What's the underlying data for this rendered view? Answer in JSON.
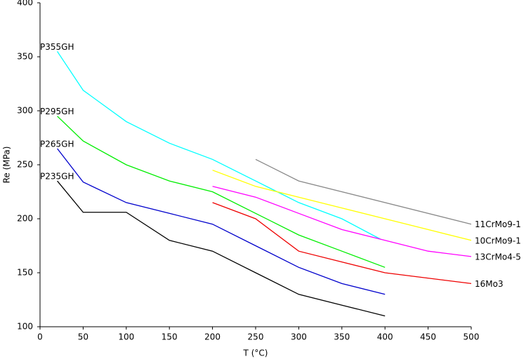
{
  "chart_data": {
    "type": "line",
    "x_label": "T (°C)",
    "y_label": "Re (MPa)",
    "xlim": [
      0,
      500
    ],
    "xticks": [
      0,
      50,
      100,
      150,
      200,
      250,
      300,
      350,
      400,
      450,
      500
    ],
    "ylim": [
      100,
      400
    ],
    "yticks": [
      100,
      150,
      200,
      250,
      300,
      350,
      400
    ],
    "grid": false,
    "series": [
      {
        "name": "P355GH",
        "color": "#00ffff",
        "x": [
          20,
          50,
          100,
          150,
          200,
          250,
          300,
          350,
          395
        ],
        "values": [
          355,
          319,
          290,
          270,
          255,
          235,
          215,
          200,
          181
        ]
      },
      {
        "name": "P295GH",
        "color": "#00ee00",
        "x": [
          20,
          50,
          100,
          150,
          200,
          250,
          300,
          350,
          400
        ],
        "values": [
          295,
          272,
          250,
          235,
          225,
          205,
          185,
          170,
          155
        ]
      },
      {
        "name": "P265GH",
        "color": "#0000cc",
        "x": [
          20,
          50,
          100,
          150,
          200,
          250,
          300,
          350,
          400
        ],
        "values": [
          265,
          234,
          215,
          205,
          195,
          175,
          155,
          140,
          130
        ]
      },
      {
        "name": "P235GH",
        "color": "#000000",
        "x": [
          20,
          50,
          100,
          150,
          200,
          250,
          300,
          350,
          400
        ],
        "values": [
          235,
          206,
          206,
          180,
          170,
          150,
          130,
          120,
          110
        ]
      },
      {
        "name": "16Mo3",
        "color": "#ee0000",
        "x": [
          200,
          250,
          300,
          350,
          400,
          500
        ],
        "values": [
          215,
          200,
          170,
          160,
          150,
          140
        ]
      },
      {
        "name": "13CrMo4-5",
        "color": "#ff00ff",
        "x": [
          200,
          250,
          300,
          350,
          400,
          450,
          500
        ],
        "values": [
          230,
          220,
          205,
          190,
          180,
          170,
          165
        ]
      },
      {
        "name": "10CrMo9-1",
        "color": "#ffff00",
        "x": [
          200,
          250,
          300,
          350,
          400,
          450,
          500
        ],
        "values": [
          245,
          230,
          220,
          210,
          200,
          190,
          180
        ]
      },
      {
        "name": "11CrMo9-1",
        "color": "#888888",
        "x": [
          250,
          300,
          500
        ],
        "values": [
          255,
          235,
          195
        ]
      }
    ]
  }
}
